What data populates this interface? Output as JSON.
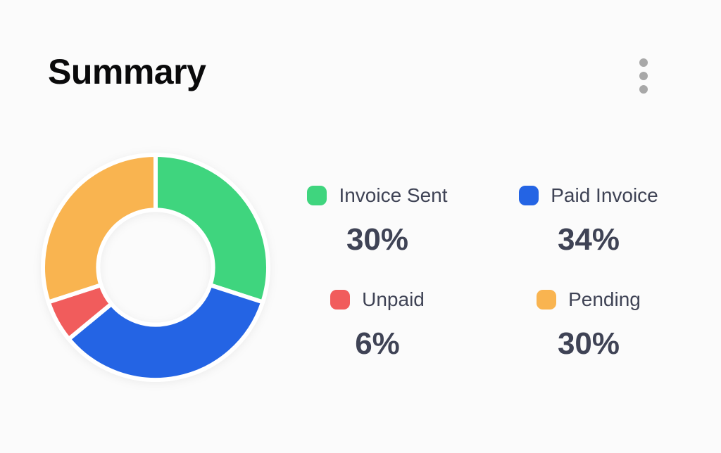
{
  "card": {
    "title": "Summary"
  },
  "menu": {
    "icon": "kebab-menu-icon"
  },
  "colors": {
    "background": "#fbfbfb",
    "title_text": "#0a0a0b",
    "legend_text": "#3f4355",
    "menu_dots": "#a8a8a8",
    "green": "#3fd57e",
    "blue": "#2464e4",
    "red": "#f15c5c",
    "orange": "#f9b450"
  },
  "chart_data": {
    "type": "pie",
    "subtype": "donut",
    "title": "Summary",
    "categories": [
      "Invoice Sent",
      "Paid Invoice",
      "Unpaid",
      "Pending"
    ],
    "values": [
      30,
      34,
      6,
      30
    ],
    "unit": "%",
    "colors": [
      "#3fd57e",
      "#2464e4",
      "#f15c5c",
      "#f9b450"
    ],
    "start_angle_deg": 0,
    "direction": "clockwise",
    "inner_radius_ratio": 0.51,
    "slice_gap_color": "#ffffff",
    "legend_position": "right",
    "grid": false
  },
  "legend": {
    "items": [
      {
        "label": "Invoice Sent",
        "value": "30%",
        "color": "#3fd57e"
      },
      {
        "label": "Paid Invoice",
        "value": "34%",
        "color": "#2464e4"
      },
      {
        "label": "Unpaid",
        "value": "6%",
        "color": "#f15c5c"
      },
      {
        "label": "Pending",
        "value": "30%",
        "color": "#f9b450"
      }
    ]
  }
}
